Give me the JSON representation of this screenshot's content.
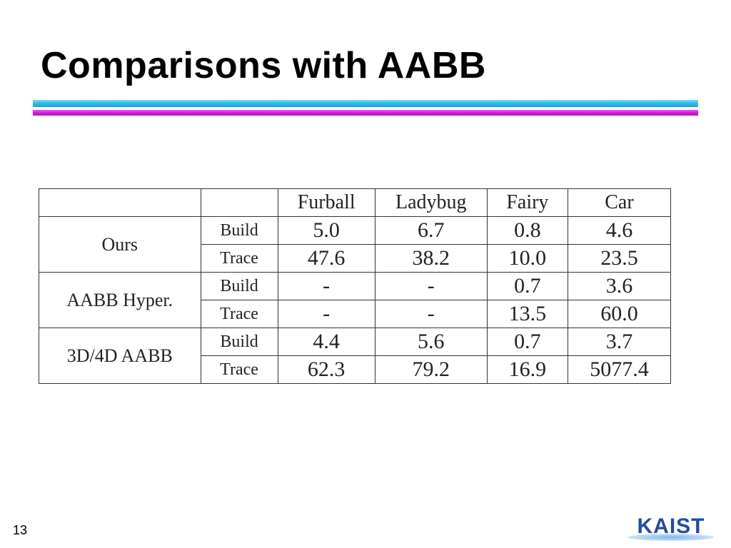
{
  "slide": {
    "title": "Comparisons with AABB",
    "page_number": "13",
    "logo_text": "KAIST"
  },
  "table": {
    "columns": [
      "Furball",
      "Ladybug",
      "Fairy",
      "Car"
    ],
    "groups": [
      {
        "name": "Ours",
        "rows": [
          {
            "metric": "Build",
            "values": [
              "5.0",
              "6.7",
              "0.8",
              "4.6"
            ]
          },
          {
            "metric": "Trace",
            "values": [
              "47.6",
              "38.2",
              "10.0",
              "23.5"
            ]
          }
        ]
      },
      {
        "name": "AABB Hyper.",
        "rows": [
          {
            "metric": "Build",
            "values": [
              "-",
              "-",
              "0.7",
              "3.6"
            ]
          },
          {
            "metric": "Trace",
            "values": [
              "-",
              "-",
              "13.5",
              "60.0"
            ]
          }
        ]
      },
      {
        "name": "3D/4D AABB",
        "rows": [
          {
            "metric": "Build",
            "values": [
              "4.4",
              "5.6",
              "0.7",
              "3.7"
            ]
          },
          {
            "metric": "Trace",
            "values": [
              "62.3",
              "79.2",
              "16.9",
              "5077.4"
            ]
          }
        ]
      }
    ]
  },
  "colors": {
    "rule_cyan": "#2bbbe6",
    "rule_magenta": "#d21bd8",
    "logo_blue": "#1f4e9e"
  }
}
